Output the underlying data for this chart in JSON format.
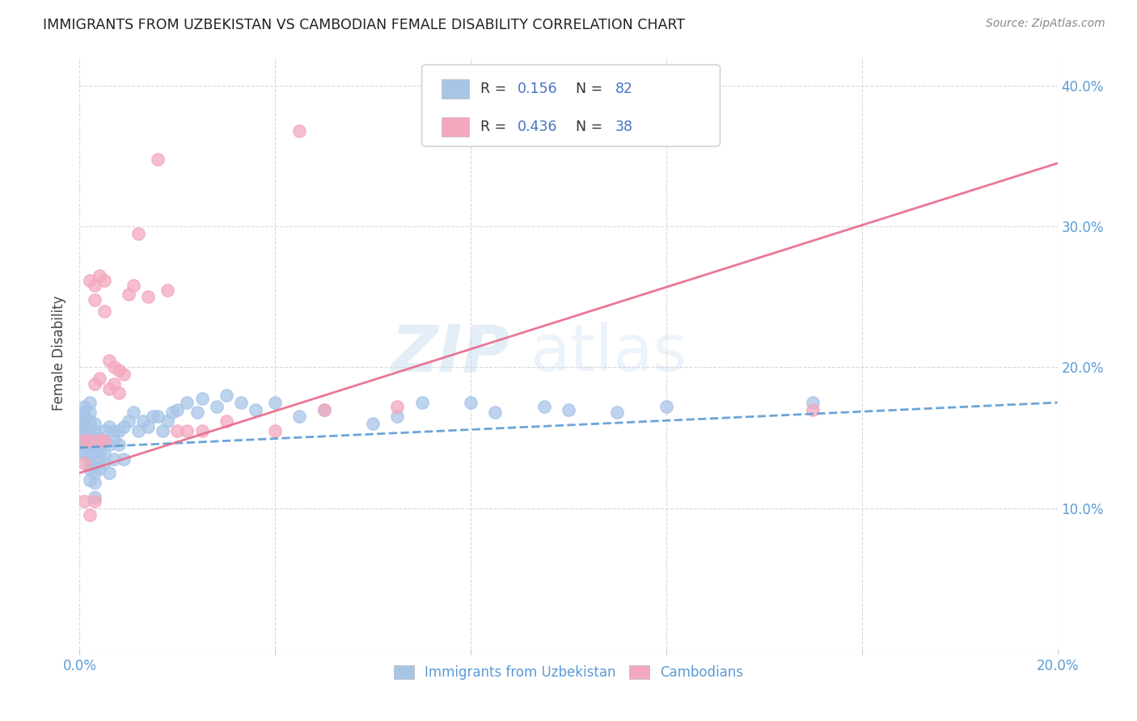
{
  "title": "IMMIGRANTS FROM UZBEKISTAN VS CAMBODIAN FEMALE DISABILITY CORRELATION CHART",
  "source": "Source: ZipAtlas.com",
  "ylabel": "Female Disability",
  "xmin": 0.0,
  "xmax": 0.2,
  "ymin": 0.0,
  "ymax": 0.42,
  "color_uzbek": "#a8c5e8",
  "color_cambodian": "#f4a8be",
  "color_uzbek_line": "#5b9bd5",
  "color_cambodian_line": "#e8688a",
  "color_text_blue": "#4472c4",
  "color_tick": "#5b9bd5",
  "grid_color": "#d0d0d0",
  "uzbek_x": [
    0.001,
    0.001,
    0.001,
    0.001,
    0.001,
    0.001,
    0.001,
    0.001,
    0.001,
    0.001,
    0.001,
    0.001,
    0.002,
    0.002,
    0.002,
    0.002,
    0.002,
    0.002,
    0.002,
    0.002,
    0.002,
    0.002,
    0.003,
    0.003,
    0.003,
    0.003,
    0.003,
    0.003,
    0.003,
    0.004,
    0.004,
    0.004,
    0.004,
    0.004,
    0.005,
    0.005,
    0.005,
    0.005,
    0.006,
    0.006,
    0.006,
    0.007,
    0.007,
    0.007,
    0.008,
    0.008,
    0.009,
    0.009,
    0.01,
    0.011,
    0.012,
    0.013,
    0.014,
    0.015,
    0.016,
    0.017,
    0.018,
    0.019,
    0.02,
    0.022,
    0.024,
    0.025,
    0.028,
    0.03,
    0.033,
    0.036,
    0.04,
    0.045,
    0.05,
    0.06,
    0.065,
    0.07,
    0.08,
    0.085,
    0.095,
    0.1,
    0.11,
    0.12,
    0.15
  ],
  "uzbek_y": [
    0.155,
    0.16,
    0.148,
    0.152,
    0.158,
    0.145,
    0.162,
    0.168,
    0.14,
    0.172,
    0.138,
    0.165,
    0.155,
    0.148,
    0.162,
    0.132,
    0.128,
    0.138,
    0.145,
    0.12,
    0.168,
    0.175,
    0.155,
    0.14,
    0.125,
    0.118,
    0.13,
    0.16,
    0.108,
    0.15,
    0.14,
    0.128,
    0.135,
    0.145,
    0.155,
    0.148,
    0.132,
    0.138,
    0.145,
    0.158,
    0.125,
    0.155,
    0.148,
    0.135,
    0.155,
    0.145,
    0.158,
    0.135,
    0.162,
    0.168,
    0.155,
    0.162,
    0.158,
    0.165,
    0.165,
    0.155,
    0.162,
    0.168,
    0.17,
    0.175,
    0.168,
    0.178,
    0.172,
    0.18,
    0.175,
    0.17,
    0.175,
    0.165,
    0.17,
    0.16,
    0.165,
    0.175,
    0.175,
    0.168,
    0.172,
    0.17,
    0.168,
    0.172,
    0.175
  ],
  "cambodian_x": [
    0.001,
    0.001,
    0.001,
    0.002,
    0.002,
    0.002,
    0.003,
    0.003,
    0.003,
    0.003,
    0.004,
    0.004,
    0.004,
    0.005,
    0.005,
    0.005,
    0.006,
    0.006,
    0.007,
    0.007,
    0.008,
    0.008,
    0.009,
    0.01,
    0.011,
    0.012,
    0.014,
    0.016,
    0.018,
    0.02,
    0.022,
    0.025,
    0.03,
    0.04,
    0.045,
    0.05,
    0.065,
    0.15
  ],
  "cambodian_y": [
    0.148,
    0.132,
    0.105,
    0.262,
    0.148,
    0.095,
    0.258,
    0.248,
    0.105,
    0.188,
    0.265,
    0.148,
    0.192,
    0.148,
    0.262,
    0.24,
    0.205,
    0.185,
    0.2,
    0.188,
    0.198,
    0.182,
    0.195,
    0.252,
    0.258,
    0.295,
    0.25,
    0.348,
    0.255,
    0.155,
    0.155,
    0.155,
    0.162,
    0.155,
    0.368,
    0.17,
    0.172,
    0.17
  ],
  "uzbek_line_x": [
    0.0,
    0.2
  ],
  "uzbek_line_y": [
    0.143,
    0.175
  ],
  "cambodian_line_x": [
    0.0,
    0.2
  ],
  "cambodian_line_y": [
    0.125,
    0.345
  ]
}
